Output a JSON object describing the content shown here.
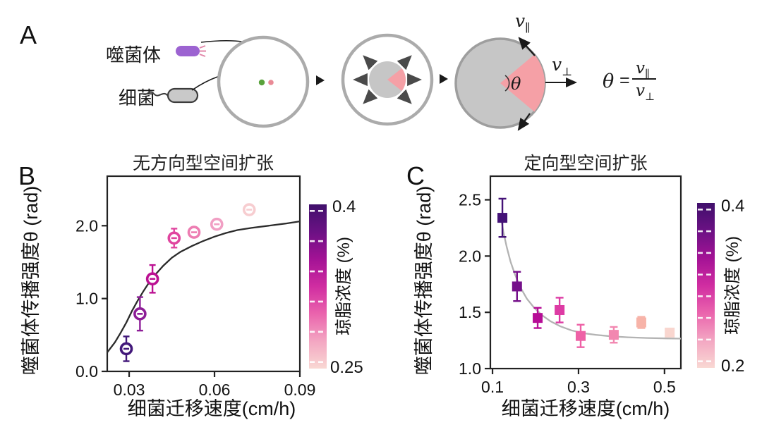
{
  "panel_a": {
    "label": "A",
    "phage_label": "噬菌体",
    "bacteria_label": "细菌",
    "theta": "θ",
    "v_base": "v",
    "parallel_sub": "∥",
    "perp_sub": "⊥",
    "formula_equals": "=",
    "colors": {
      "phage": "#9c63d1",
      "phage_tail": "#e287a9",
      "bacteria_fill": "#c9c9c9",
      "bacteria_stroke": "#3c3c3c",
      "ring": "#ababab",
      "colony_fill": "#c6c6c6",
      "colony_edge": "#9e9e9e",
      "sector_pink": "#f5a0a6",
      "arrow_black": "#1a1a1a",
      "expand_arrow": "#4a4a4a",
      "dot_green": "#59a23c",
      "dot_pink": "#e98a96"
    }
  },
  "chart_data": [
    {
      "id": "B",
      "panel_letter": "B",
      "type": "scatter",
      "title": "无方向型空间扩张",
      "xlabel": "细菌迁移速度(cm/h)",
      "ylabel": "噬菌体传播强度θ (rad)",
      "xlim": [
        0.0223,
        0.09
      ],
      "ylim": [
        0,
        2.68
      ],
      "xticks": [
        0.03,
        0.06,
        0.09
      ],
      "xtick_labels": [
        "0.03",
        "0.06",
        "0.09"
      ],
      "yticks": [
        0.0,
        1.0,
        2.0
      ],
      "ytick_labels": [
        "0.0",
        "1.0",
        "2.0"
      ],
      "marker": "open-circle",
      "legend_position": "right-colorbar",
      "grid": false,
      "points": [
        {
          "x": 0.029,
          "y": 0.31,
          "err": 0.17,
          "color": "#42187a"
        },
        {
          "x": 0.0338,
          "y": 0.79,
          "err": 0.23,
          "color": "#8d1d97"
        },
        {
          "x": 0.0382,
          "y": 1.27,
          "err": 0.19,
          "color": "#bb1092"
        },
        {
          "x": 0.0458,
          "y": 1.83,
          "err": 0.13,
          "color": "#e0459f"
        },
        {
          "x": 0.0528,
          "y": 1.91,
          "err": 0.04,
          "color": "#ed7db2"
        },
        {
          "x": 0.0608,
          "y": 2.02,
          "err": 0.04,
          "color": "#f19fc4"
        },
        {
          "x": 0.0722,
          "y": 2.22,
          "err": 0.04,
          "color": "#f7cdd0"
        }
      ],
      "curve": {
        "color": "#2b2b2b",
        "x": [
          0.0223,
          0.025,
          0.027,
          0.029,
          0.031,
          0.033,
          0.035,
          0.037,
          0.039,
          0.042,
          0.045,
          0.048,
          0.052,
          0.056,
          0.06,
          0.064,
          0.068,
          0.073,
          0.079,
          0.085,
          0.09
        ],
        "y": [
          0.26,
          0.4,
          0.53,
          0.67,
          0.83,
          0.97,
          1.1,
          1.22,
          1.32,
          1.45,
          1.56,
          1.64,
          1.72,
          1.79,
          1.85,
          1.9,
          1.94,
          1.97,
          2.0,
          2.03,
          2.06
        ]
      },
      "colorbar": {
        "label": "琼脂浓度 (%)",
        "max_label": "0.4",
        "min_label": "0.25",
        "gradient_bottom_to_top": [
          "#f9d8d3",
          "#f3a6c2",
          "#ea64ad",
          "#d02da1",
          "#a31295",
          "#6b1184",
          "#40106b"
        ]
      }
    },
    {
      "id": "C",
      "panel_letter": "C",
      "type": "scatter",
      "title": "定向型空间扩张",
      "xlabel": "细菌迁移速度(cm/h)",
      "ylabel": "噬菌体传播强度θ (rad)",
      "xlim": [
        0.095,
        0.538
      ],
      "ylim": [
        1.0,
        2.71
      ],
      "xticks": [
        0.1,
        0.3,
        0.5
      ],
      "xtick_labels": [
        "0.1",
        "0.3",
        "0.5"
      ],
      "yticks": [
        1.0,
        1.5,
        2.0,
        2.5
      ],
      "ytick_labels": [
        "1.0",
        "1.5",
        "2.0",
        "2.5"
      ],
      "marker": "filled-square",
      "legend_position": "right-colorbar",
      "grid": false,
      "points": [
        {
          "x": 0.123,
          "y": 2.34,
          "err": 0.17,
          "color": "#441277"
        },
        {
          "x": 0.157,
          "y": 1.73,
          "err": 0.13,
          "color": "#75108a"
        },
        {
          "x": 0.205,
          "y": 1.45,
          "err": 0.09,
          "color": "#b60d96"
        },
        {
          "x": 0.256,
          "y": 1.52,
          "err": 0.11,
          "color": "#dd3ba4"
        },
        {
          "x": 0.305,
          "y": 1.29,
          "err": 0.1,
          "color": "#ee61a6"
        },
        {
          "x": 0.382,
          "y": 1.3,
          "err": 0.07,
          "color": "#f287b0"
        },
        {
          "x": 0.446,
          "y": 1.41,
          "err": 0.05,
          "color": "#f7b3a8"
        },
        {
          "x": 0.512,
          "y": 1.32,
          "err": 0.03,
          "color": "#f9d6cf"
        }
      ],
      "curve": {
        "color": "#b3b3b3",
        "x": [
          0.118,
          0.125,
          0.133,
          0.142,
          0.152,
          0.165,
          0.18,
          0.197,
          0.215,
          0.235,
          0.258,
          0.283,
          0.31,
          0.34,
          0.375,
          0.415,
          0.46,
          0.505,
          0.538
        ],
        "y": [
          2.38,
          2.22,
          2.08,
          1.95,
          1.84,
          1.72,
          1.62,
          1.54,
          1.475,
          1.42,
          1.375,
          1.34,
          1.315,
          1.3,
          1.287,
          1.278,
          1.272,
          1.268,
          1.266
        ]
      },
      "colorbar": {
        "label": "琼脂浓度 (%)",
        "max_label": "0.4",
        "min_label": "0.2",
        "gradient_bottom_to_top": [
          "#f9d8d3",
          "#f3a6c2",
          "#ea64ad",
          "#d02da1",
          "#a31295",
          "#6b1184",
          "#40106b"
        ]
      }
    }
  ]
}
